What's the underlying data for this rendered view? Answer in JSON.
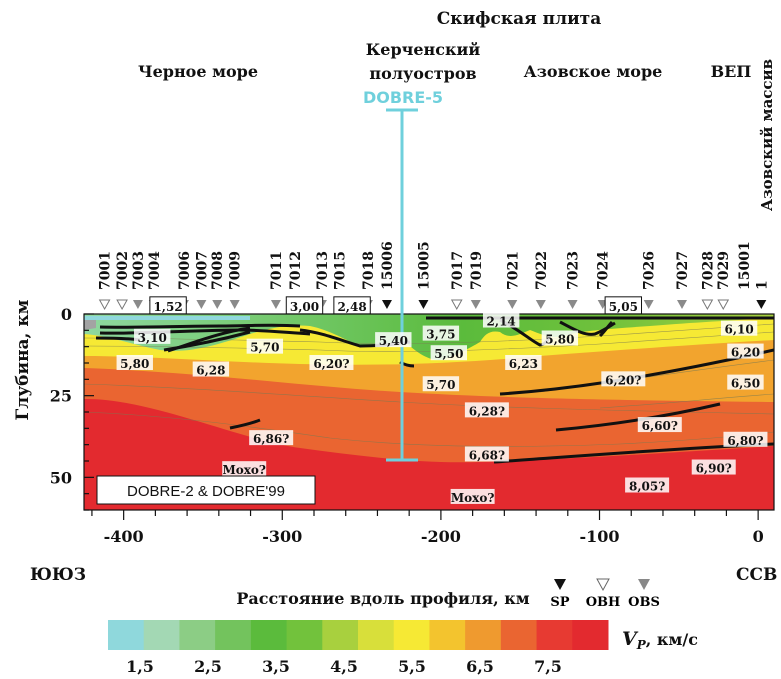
{
  "chart_data": {
    "type": "heatmap",
    "title": "Скифская плита",
    "region_labels": [
      "Черное море",
      "Керченский",
      "полуостров",
      "Азовское море",
      "ВЕП",
      "Азовский массив"
    ],
    "profile_marker": "DOBRE-5",
    "legend_box": "DOBRE-2 & DOBRE'99",
    "xlabel": "Расстояние вдоль профиля, км",
    "ylabel": "Глубина, км",
    "xlim": [
      -425,
      10
    ],
    "ylim": [
      60,
      0
    ],
    "x_ticks": [
      "-400",
      "-300",
      "-200",
      "-100",
      "0"
    ],
    "y_ticks": [
      "0",
      "25",
      "50"
    ],
    "left_end": "ЮЮЗ",
    "right_end": "ССВ",
    "stations": [
      {
        "id": "7001",
        "x": -412
      },
      {
        "id": "7002",
        "x": -401
      },
      {
        "id": "7003",
        "x": -391
      },
      {
        "id": "7004",
        "x": -381
      },
      {
        "id": "7006",
        "x": -362
      },
      {
        "id": "7007",
        "x": -351
      },
      {
        "id": "7008",
        "x": -341
      },
      {
        "id": "7009",
        "x": -330
      },
      {
        "id": "7011",
        "x": -304
      },
      {
        "id": "7012",
        "x": -292
      },
      {
        "id": "7013",
        "x": -275
      },
      {
        "id": "7015",
        "x": -264
      },
      {
        "id": "7018",
        "x": -246
      },
      {
        "id": "15006",
        "x": -234
      },
      {
        "id": "15005",
        "x": -211
      },
      {
        "id": "7017",
        "x": -190
      },
      {
        "id": "7019",
        "x": -178
      },
      {
        "id": "7021",
        "x": -155
      },
      {
        "id": "7022",
        "x": -137
      },
      {
        "id": "7023",
        "x": -117
      },
      {
        "id": "7024",
        "x": -98
      },
      {
        "id": "7026",
        "x": -69
      },
      {
        "id": "7027",
        "x": -48
      },
      {
        "id": "7028",
        "x": -32
      },
      {
        "id": "7029",
        "x": -22
      },
      {
        "id": "15001",
        "x": -9
      },
      {
        "id": "1",
        "x": 2
      }
    ],
    "sensors": [
      {
        "x": -412,
        "kind": "OBH"
      },
      {
        "x": -401,
        "kind": "OBH"
      },
      {
        "x": -391,
        "kind": "OBS"
      },
      {
        "x": -381,
        "kind": "OBS"
      },
      {
        "x": -362,
        "kind": "OBS"
      },
      {
        "x": -351,
        "kind": "OBS"
      },
      {
        "x": -341,
        "kind": "OBS"
      },
      {
        "x": -330,
        "kind": "OBS"
      },
      {
        "x": -304,
        "kind": "OBS"
      },
      {
        "x": -292,
        "kind": "OBS"
      },
      {
        "x": -275,
        "kind": "OBS"
      },
      {
        "x": -264,
        "kind": "OBS"
      },
      {
        "x": -246,
        "kind": "OBS"
      },
      {
        "x": -234,
        "kind": "SP"
      },
      {
        "x": -211,
        "kind": "SP"
      },
      {
        "x": -190,
        "kind": "OBH"
      },
      {
        "x": -178,
        "kind": "OBS"
      },
      {
        "x": -155,
        "kind": "OBS"
      },
      {
        "x": -137,
        "kind": "OBS"
      },
      {
        "x": -117,
        "kind": "OBS"
      },
      {
        "x": -98,
        "kind": "OBS"
      },
      {
        "x": -69,
        "kind": "OBS"
      },
      {
        "x": -48,
        "kind": "OBS"
      },
      {
        "x": -32,
        "kind": "OBH"
      },
      {
        "x": -22,
        "kind": "OBH"
      },
      {
        "x": 2,
        "kind": "SP"
      }
    ],
    "sensor_legend": [
      "SP",
      "OBH",
      "OBS"
    ],
    "velocity_labels": [
      {
        "x": -372,
        "depth": -2.5,
        "value": "1,52",
        "boxed": true
      },
      {
        "x": -286,
        "depth": -2.5,
        "value": "3,00",
        "boxed": true
      },
      {
        "x": -256,
        "depth": -2.5,
        "value": "2,48",
        "boxed": true
      },
      {
        "x": -85,
        "depth": -2.5,
        "value": "5,05",
        "boxed": true
      },
      {
        "x": -382,
        "depth": 7,
        "value": "3,10"
      },
      {
        "x": -311,
        "depth": 10,
        "value": "5,70"
      },
      {
        "x": -230,
        "depth": 8,
        "value": "5,40"
      },
      {
        "x": -200,
        "depth": 6,
        "value": "3,75"
      },
      {
        "x": -162,
        "depth": 2,
        "value": "2,14"
      },
      {
        "x": -195,
        "depth": 12,
        "value": "5,50"
      },
      {
        "x": -125,
        "depth": 7.5,
        "value": "5,80"
      },
      {
        "x": -12,
        "depth": 4.5,
        "value": "6,10"
      },
      {
        "x": -393,
        "depth": 15,
        "value": "5,80"
      },
      {
        "x": -345,
        "depth": 17,
        "value": "6,28"
      },
      {
        "x": -269,
        "depth": 15,
        "value": "6,20?"
      },
      {
        "x": -148,
        "depth": 15,
        "value": "6,23"
      },
      {
        "x": -8,
        "depth": 11.5,
        "value": "6,20"
      },
      {
        "x": -200,
        "depth": 21.5,
        "value": "5,70"
      },
      {
        "x": -85,
        "depth": 20,
        "value": "6,20?"
      },
      {
        "x": -8,
        "depth": 21,
        "value": "6,50"
      },
      {
        "x": -171,
        "depth": 29.5,
        "value": "6,28?"
      },
      {
        "x": -62,
        "depth": 34,
        "value": "6,60?"
      },
      {
        "x": -307,
        "depth": 38,
        "value": "6,86?"
      },
      {
        "x": -171,
        "depth": 43,
        "value": "6,68?"
      },
      {
        "x": -8,
        "depth": 38.5,
        "value": "6,80?"
      },
      {
        "x": -28,
        "depth": 47,
        "value": "6,90?"
      },
      {
        "x": -324,
        "depth": 47.5,
        "value": "Мохо?"
      },
      {
        "x": -180,
        "depth": 56,
        "value": "Мохо?"
      },
      {
        "x": -70,
        "depth": 52.5,
        "value": "8,05?"
      }
    ],
    "colorbar": {
      "label": "V",
      "label_sub": "P",
      "label_unit": ", км/с",
      "ticks": [
        "1,5",
        "2,5",
        "3,5",
        "4,5",
        "5,5",
        "6,5",
        "7,5"
      ],
      "colors": [
        "#8fd8dc",
        "#a3d8b4",
        "#8ccd85",
        "#73c35d",
        "#5bbb3c",
        "#72c23c",
        "#a8d03e",
        "#d8df3a",
        "#f6e934",
        "#f3c42e",
        "#ef9a2f",
        "#ea6531",
        "#e73a32",
        "#e32a2f"
      ]
    }
  }
}
